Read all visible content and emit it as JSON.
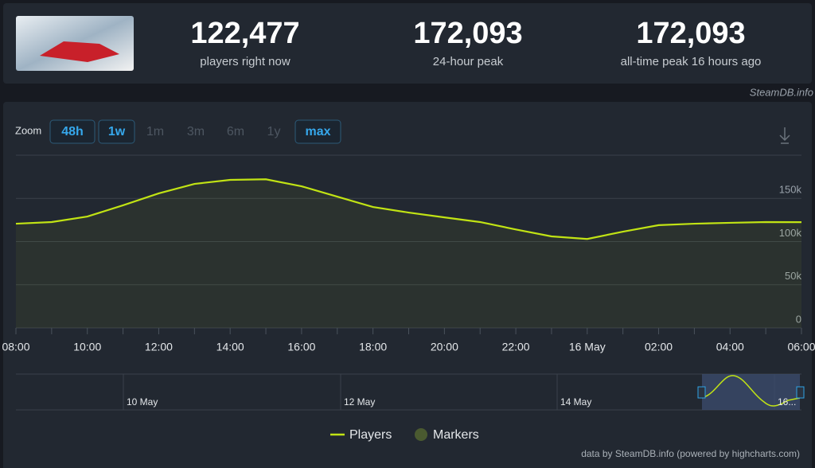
{
  "header": {
    "stats": [
      {
        "value": "122,477",
        "label": "players right now"
      },
      {
        "value": "172,093",
        "label": "24-hour peak"
      },
      {
        "value": "172,093",
        "label": "all-time peak 16 hours ago"
      }
    ],
    "watermark": "SteamDB.info"
  },
  "zoom": {
    "label": "Zoom",
    "buttons": [
      "48h",
      "1w",
      "1m",
      "3m",
      "6m",
      "1y",
      "max"
    ]
  },
  "navigator": {
    "labels": [
      "10 May",
      "12 May",
      "14 May",
      "16..."
    ]
  },
  "credits": "data by SteamDB.info (powered by highcharts.com)",
  "chart_data": {
    "type": "line",
    "categories": [
      "08:00",
      null,
      "10:00",
      null,
      "12:00",
      null,
      "14:00",
      null,
      "16:00",
      null,
      "18:00",
      null,
      "20:00",
      null,
      "22:00",
      null,
      "16 May",
      null,
      "02:00",
      null,
      "04:00",
      null,
      "06:00"
    ],
    "series": [
      {
        "name": "Players",
        "color": "#c1e314",
        "values": [
          120700,
          122600,
          129000,
          142000,
          155800,
          166800,
          171400,
          172093,
          164000,
          152000,
          140000,
          133600,
          128000,
          122600,
          114000,
          106000,
          103000,
          111500,
          119000,
          120700,
          121700,
          122600,
          122477
        ]
      }
    ],
    "markers": {
      "name": "Markers",
      "color": "#4a5a30"
    },
    "ylim": [
      0,
      200000
    ],
    "yticks": [
      0,
      {
        "value": 50000,
        "label": "50k"
      },
      {
        "value": 100000,
        "label": "100k"
      },
      {
        "value": 150000,
        "label": "150k"
      }
    ],
    "grid": true
  }
}
